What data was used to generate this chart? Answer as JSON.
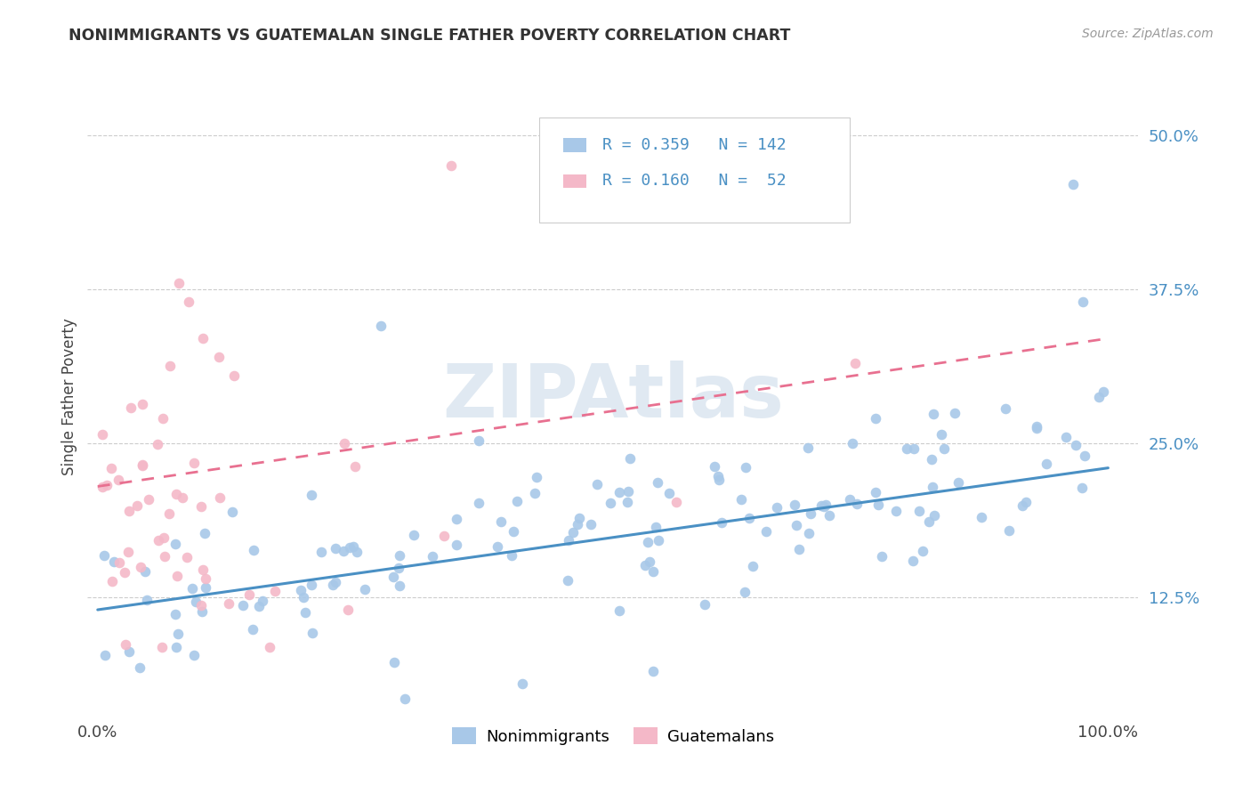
{
  "title": "NONIMMIGRANTS VS GUATEMALAN SINGLE FATHER POVERTY CORRELATION CHART",
  "source": "Source: ZipAtlas.com",
  "ylabel": "Single Father Poverty",
  "bg_color": "#ffffff",
  "grid_color": "#cccccc",
  "watermark": "ZIPAtlas",
  "blue_color": "#a8c8e8",
  "pink_color": "#f4b8c8",
  "line_blue": "#4a90c4",
  "line_pink": "#e87090",
  "tick_color": "#4a90c4",
  "title_color": "#333333",
  "source_color": "#999999",
  "legend_R1": "0.359",
  "legend_N1": "142",
  "legend_R2": "0.160",
  "legend_N2": " 52",
  "ytick_positions": [
    0.125,
    0.25,
    0.375,
    0.5
  ],
  "ytick_labels": [
    "12.5%",
    "25.0%",
    "37.5%",
    "50.0%"
  ],
  "ylim": [
    0.03,
    0.545
  ],
  "xlim": [
    -0.01,
    1.03
  ]
}
